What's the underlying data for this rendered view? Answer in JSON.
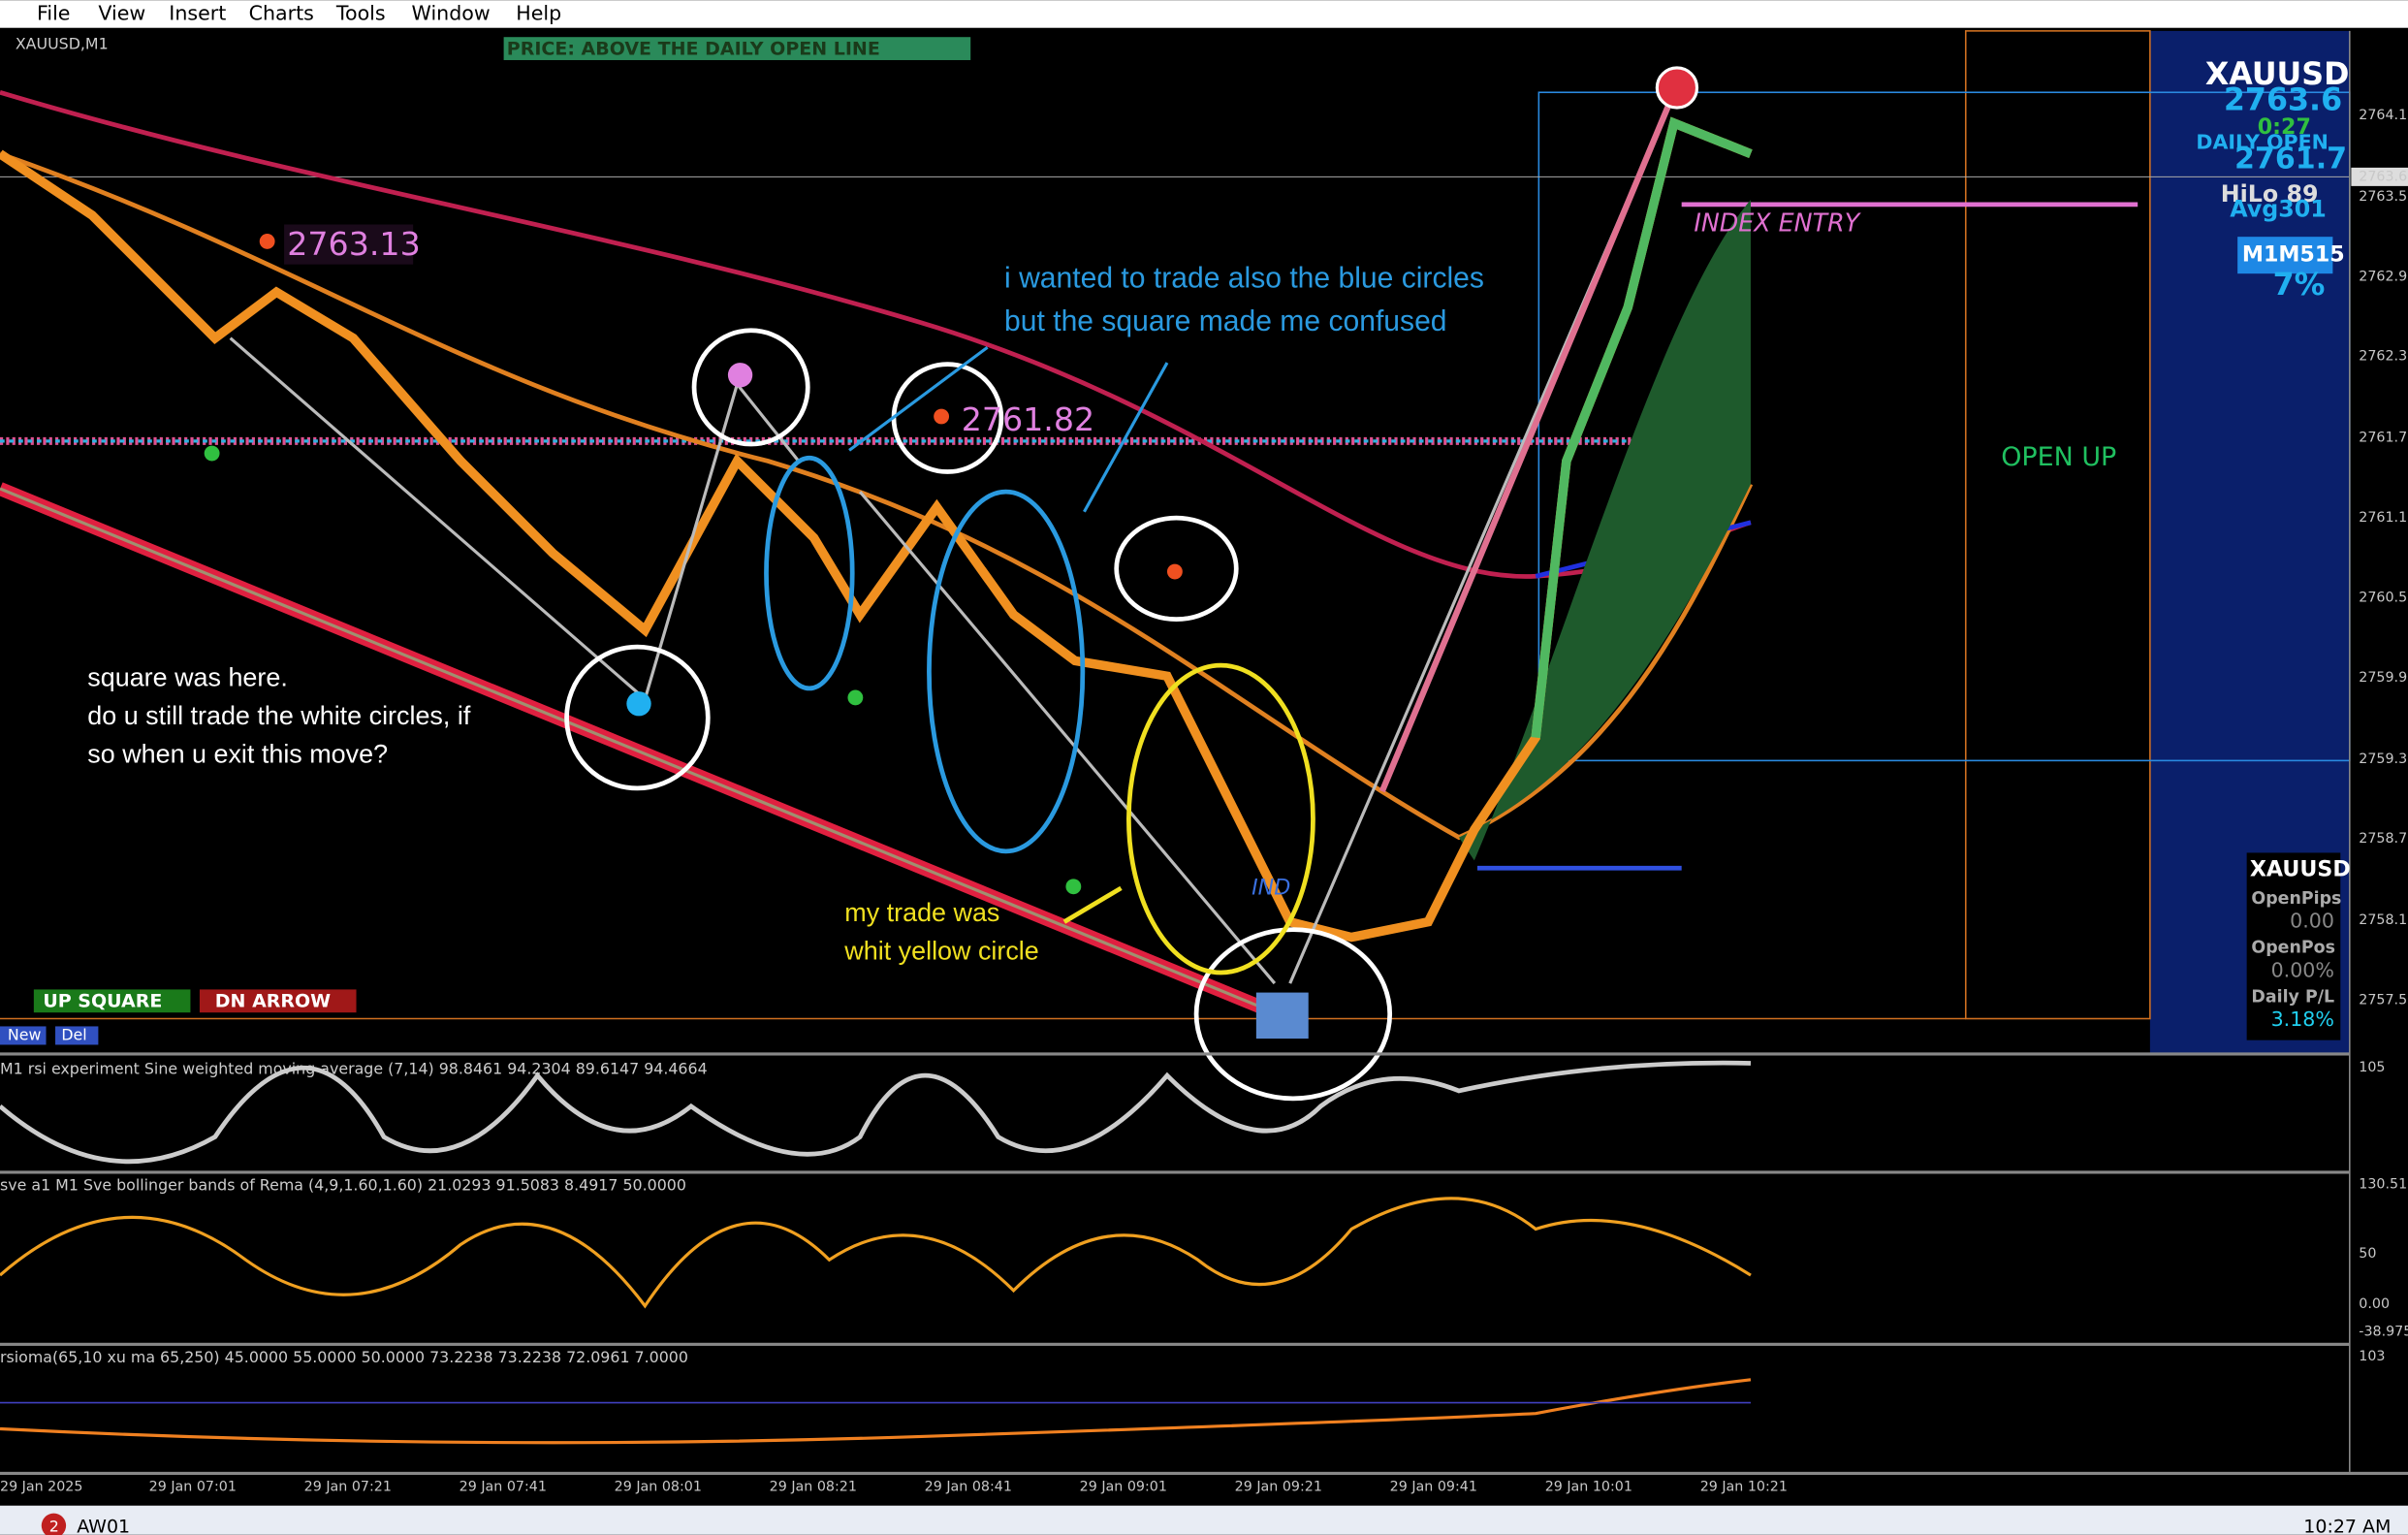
{
  "menu": [
    "File",
    "View",
    "Insert",
    "Charts",
    "Tools",
    "Window",
    "Help"
  ],
  "chart": {
    "symbol": "XAUUSD,M1",
    "banner": "PRICE: ABOVE THE DAILY OPEN LINE",
    "price_labels": [
      "2764.1",
      "2763.6",
      "2763.5",
      "2762.9",
      "2762.3",
      "2761.7",
      "2761.1",
      "2760.5",
      "2759.9",
      "2759.3",
      "2758.7",
      "2758.1",
      "2757.5"
    ],
    "time_labels": [
      "29 Jan 2025",
      "29 Jan 07:01",
      "29 Jan 07:21",
      "29 Jan 07:41",
      "29 Jan 08:01",
      "29 Jan 08:21",
      "29 Jan 08:41",
      "29 Jan 09:01",
      "29 Jan 09:21",
      "29 Jan 09:41",
      "29 Jan 10:01",
      "29 Jan 10:21"
    ],
    "price_tags": [
      "2763.13",
      "2761.82"
    ],
    "notes": {
      "blue": [
        "i wanted to trade also the blue circles",
        "but the square made me confused"
      ],
      "white": [
        "square was here.",
        "do u still trade the white circles, if",
        "so when u exit this move?"
      ],
      "yellow": [
        "my trade was",
        "whit yellow circle"
      ]
    },
    "open_up": "OPEN UP",
    "index_entry": "INDEX ENTRY",
    "index_short": "IND",
    "buttons": [
      "UP SQUARE",
      "DN ARROW"
    ],
    "tabs": [
      "New",
      "Del"
    ],
    "info": {
      "symbol": "XAUUSD",
      "price": "2763.6",
      "timer": "0:27",
      "daily_open": "DAILY OPEN",
      "open_price": "2761.7",
      "hilo": "HiLo 89",
      "avg": "Avg301",
      "tf": "M1M515",
      "pct": "7%"
    },
    "stats": {
      "symbol": "XAUUSD",
      "rows": [
        [
          "OpenPips",
          "0.00"
        ],
        [
          "OpenPos",
          "0.00%"
        ],
        [
          "Daily P/L",
          "3.18%"
        ]
      ]
    }
  },
  "indicators": [
    {
      "title": "M1 rsi experiment Sine weighted moving average (7,14) 98.8461 94.2304 89.6147 94.4664",
      "ticks": [
        "105"
      ]
    },
    {
      "title": "sve a1 M1 Sve bollinger bands of Rema (4,9,1.60,1.60) 21.0293 91.5083 8.4917 50.0000",
      "ticks": [
        "130.511",
        "50",
        "0.00",
        "-38.975"
      ]
    },
    {
      "title": "rsioma(65,10 xu ma 65,250) 45.0000 55.0000 50.0000 73.2238 73.2238 72.0961 7.0000",
      "ticks": [
        "103"
      ]
    }
  ],
  "taskbar": {
    "badge": "2",
    "app": "AW01",
    "clock": "10:27 AM"
  }
}
